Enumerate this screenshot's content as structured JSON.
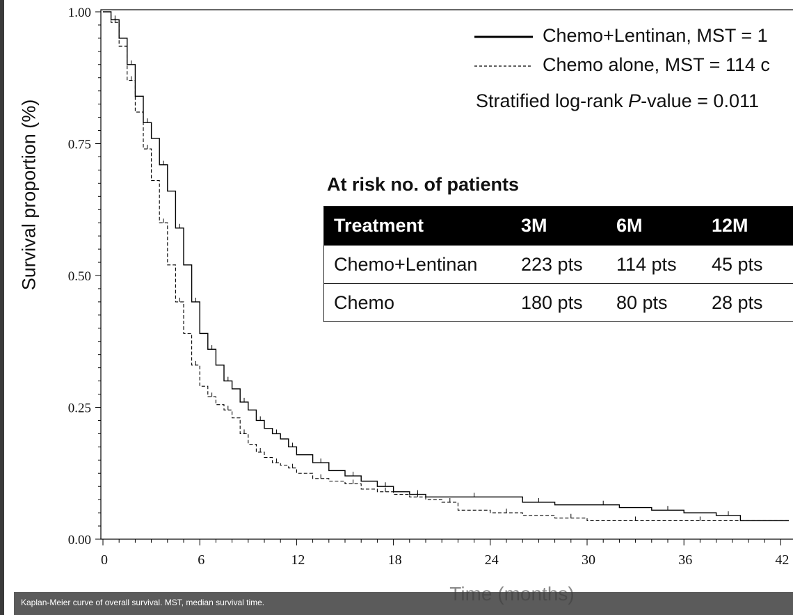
{
  "chart_data": {
    "type": "line",
    "title": "",
    "xlabel": "Time (months)",
    "ylabel": "Survival proportion (%)",
    "xlim": [
      0,
      42
    ],
    "ylim": [
      0,
      1
    ],
    "xticks": [
      "0",
      "6",
      "12",
      "18",
      "24",
      "30",
      "36",
      "42"
    ],
    "yticks": [
      "0.00",
      "0.25",
      "0.50",
      "0.75",
      "1.00"
    ],
    "series": [
      {
        "name": "Chemo+Lentinan, MST = 1",
        "style": "solid",
        "color": "#000000",
        "x": [
          0,
          0.5,
          1,
          1.5,
          2,
          2.5,
          3,
          3.5,
          4,
          4.5,
          5,
          5.5,
          6,
          6.5,
          7,
          7.5,
          8,
          8.5,
          9,
          9.5,
          10,
          10.5,
          11,
          11.5,
          12,
          13,
          14,
          15,
          16,
          17,
          18,
          19,
          20,
          22,
          24,
          26,
          28,
          30,
          32,
          34,
          36,
          38,
          39.5,
          42.5
        ],
        "y": [
          1.0,
          0.985,
          0.95,
          0.9,
          0.84,
          0.79,
          0.76,
          0.71,
          0.66,
          0.59,
          0.52,
          0.45,
          0.39,
          0.36,
          0.33,
          0.3,
          0.285,
          0.26,
          0.245,
          0.225,
          0.21,
          0.2,
          0.19,
          0.175,
          0.16,
          0.145,
          0.13,
          0.12,
          0.11,
          0.1,
          0.09,
          0.085,
          0.08,
          0.08,
          0.08,
          0.07,
          0.065,
          0.065,
          0.06,
          0.055,
          0.05,
          0.045,
          0.035,
          0.035
        ]
      },
      {
        "name": "Chemo alone, MST = 114 c",
        "style": "dashed",
        "color": "#000000",
        "x": [
          0,
          0.5,
          1,
          1.5,
          2,
          2.5,
          3,
          3.5,
          4,
          4.5,
          5,
          5.5,
          6,
          6.5,
          7,
          7.5,
          8,
          8.5,
          9,
          9.5,
          10,
          10.5,
          11,
          11.5,
          12,
          13,
          14,
          15,
          16,
          17,
          18,
          19,
          20,
          21,
          22,
          24,
          26,
          28,
          30,
          32,
          34,
          36,
          38,
          42.5
        ],
        "y": [
          1.0,
          0.98,
          0.935,
          0.87,
          0.81,
          0.74,
          0.68,
          0.6,
          0.52,
          0.45,
          0.39,
          0.33,
          0.29,
          0.27,
          0.255,
          0.245,
          0.23,
          0.2,
          0.18,
          0.165,
          0.155,
          0.145,
          0.14,
          0.135,
          0.125,
          0.115,
          0.11,
          0.105,
          0.095,
          0.09,
          0.085,
          0.08,
          0.075,
          0.07,
          0.055,
          0.05,
          0.045,
          0.04,
          0.035,
          0.035,
          0.035,
          0.035,
          0.035,
          0.035
        ]
      }
    ],
    "legend_position": "top-right",
    "annotation": {
      "text_prefix": "Stratified log-rank ",
      "text_italic": "P",
      "text_suffix": "-value = 0.011"
    },
    "risk_table": {
      "title": "At risk no. of patients",
      "headers": [
        "Treatment",
        "3M",
        "6M",
        "12M"
      ],
      "rows": [
        [
          "Chemo+Lentinan",
          "223 pts",
          "114 pts",
          "45 pts"
        ],
        [
          "Chemo",
          "180 pts",
          "80 pts",
          "28 pts"
        ]
      ]
    }
  },
  "caption": "Kaplan-Meier curve of overall survival. MST, median survival time."
}
